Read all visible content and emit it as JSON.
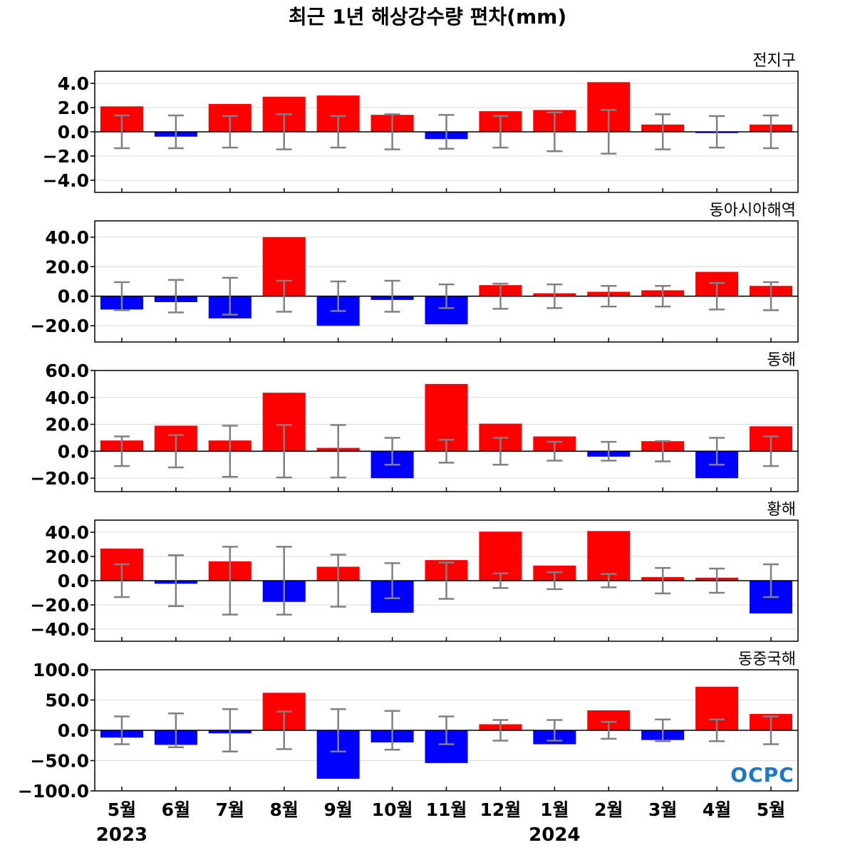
{
  "chart_title": "최근 1년 해상강수량 편차(mm)",
  "logo_text": "OCPC",
  "colors": {
    "positive": "#ff0000",
    "negative": "#0000ff",
    "error_bar": "#808080",
    "grid": "#d9d9d9",
    "logo": "#1a78c8"
  },
  "chart_data": [
    {
      "type": "bar",
      "title": "전지구",
      "ylim": [
        -5,
        5
      ],
      "yticks": [
        4.0,
        2.0,
        0.0,
        -2.0,
        -4.0
      ],
      "ytick_labels": [
        "4.0",
        "2.0",
        "0.0",
        "−2.0",
        "−4.0"
      ],
      "values": [
        2.1,
        -0.4,
        2.3,
        2.9,
        3.0,
        1.4,
        -0.6,
        1.7,
        1.8,
        4.1,
        0.6,
        -0.1,
        0.6
      ],
      "error": [
        1.35,
        1.35,
        1.3,
        1.45,
        1.3,
        1.45,
        1.4,
        1.3,
        1.6,
        1.8,
        1.45,
        1.3,
        1.35
      ],
      "grid": true
    },
    {
      "type": "bar",
      "title": "동아시아해역",
      "ylim": [
        -31,
        51
      ],
      "yticks": [
        40.0,
        20.0,
        0.0,
        -20.0
      ],
      "ytick_labels": [
        "40.0",
        "20.0",
        "0.0",
        "−20.0"
      ],
      "values": [
        -9,
        -4,
        -15,
        40,
        -20,
        -2.5,
        -19,
        7.5,
        2,
        3,
        4,
        16.5,
        7
      ],
      "error": [
        9.5,
        11,
        12.5,
        10.5,
        10,
        10.5,
        8,
        8.5,
        8,
        7,
        7,
        9,
        9.5
      ],
      "grid": true
    },
    {
      "type": "bar",
      "title": "동해",
      "ylim": [
        -30,
        60
      ],
      "yticks": [
        60.0,
        40.0,
        20.0,
        0.0,
        -20.0
      ],
      "ytick_labels": [
        "60.0",
        "40.0",
        "20.0",
        "0.0",
        "−20.0"
      ],
      "values": [
        8,
        19,
        8,
        43.5,
        2.5,
        -20,
        50,
        20.5,
        11,
        -4,
        7.5,
        -20,
        18.5
      ],
      "error": [
        11,
        12,
        19,
        19.5,
        19.5,
        10,
        8.5,
        10,
        7,
        7,
        7.5,
        10,
        11
      ],
      "grid": true
    },
    {
      "type": "bar",
      "title": "황해",
      "ylim": [
        -50,
        50
      ],
      "yticks": [
        40.0,
        20.0,
        0.0,
        -20.0,
        -40.0
      ],
      "ytick_labels": [
        "40.0",
        "20.0",
        "0.0",
        "−20.0",
        "−40.0"
      ],
      "values": [
        26.5,
        -2.5,
        16,
        -17.5,
        11.5,
        -26.5,
        17,
        40.5,
        12.5,
        41,
        3,
        2.5,
        -27
      ],
      "error": [
        13.5,
        21,
        28,
        28,
        21.5,
        14.5,
        15,
        6,
        7,
        5.5,
        10.5,
        10,
        13.5
      ],
      "grid": true
    },
    {
      "type": "bar",
      "title": "동중국해",
      "ylim": [
        -100,
        100
      ],
      "yticks": [
        100.0,
        50.0,
        0.0,
        -50.0,
        -100.0
      ],
      "ytick_labels": [
        "100.0",
        "50.0",
        "0.0",
        "−50.0",
        "−100.0"
      ],
      "values": [
        -12,
        -24,
        -5,
        62,
        -80,
        -20,
        -54,
        10,
        -23,
        33,
        -16,
        72,
        27
      ],
      "error": [
        23,
        28,
        35,
        31,
        35,
        32,
        23,
        17,
        17,
        14,
        18,
        18,
        23
      ],
      "grid": true
    }
  ],
  "x_categories": [
    "5월",
    "6월",
    "7월",
    "8월",
    "9월",
    "10월",
    "11월",
    "12월",
    "1월",
    "2월",
    "3월",
    "4월",
    "5월"
  ],
  "year_labels": [
    {
      "index": 0,
      "text": "2023"
    },
    {
      "index": 8,
      "text": "2024"
    }
  ]
}
